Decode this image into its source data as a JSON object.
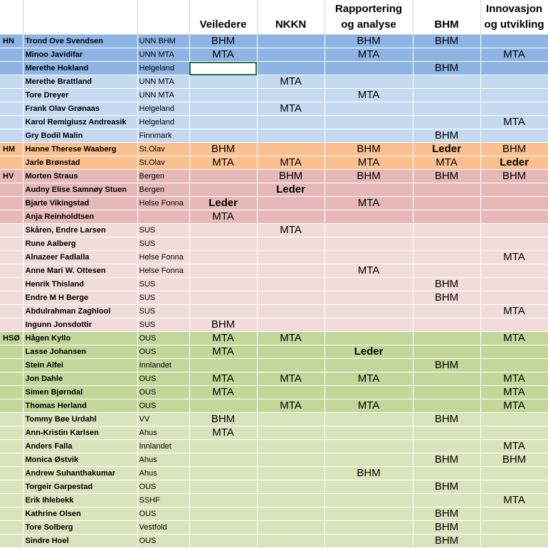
{
  "headers": [
    "",
    "",
    "",
    "Veiledere",
    "NKKN",
    "Rapportering\nog analyse",
    "BHM",
    "Innovasjon\nog utvikling"
  ],
  "colors": {
    "hn_dark": "#8eb4e3",
    "hn_light": "#c5d9f1",
    "hm": "#fac090",
    "hv_dark": "#e6b8b7",
    "hv_light": "#f2dcdb",
    "hso_dark": "#c4d79b",
    "hso_light": "#d8e4bc"
  },
  "rows": [
    {
      "region": "HN",
      "name": "Trond Ove Svendsen",
      "org": "UNN BHM",
      "veiledere": "BHM",
      "nkkn": "",
      "rapport": "BHM",
      "bhm": "BHM",
      "innovasjon": "",
      "color": "#8eb4e3",
      "bold": []
    },
    {
      "region": "",
      "name": "Minoo Javidifar",
      "org": "UNN MTA",
      "veiledere": "MTA",
      "nkkn": "",
      "rapport": "MTA",
      "bhm": "",
      "innovasjon": "MTA",
      "color": "#8eb4e3",
      "bold": []
    },
    {
      "region": "",
      "name": "Merethe Hokland",
      "org": "Helgeland",
      "veiledere": "",
      "nkkn": "",
      "rapport": "",
      "bhm": "BHM",
      "innovasjon": "",
      "color": "#8eb4e3",
      "bold": [],
      "selected": true
    },
    {
      "region": "",
      "name": "Merethe Brattland",
      "org": "UNN MTA",
      "veiledere": "",
      "nkkn": "MTA",
      "rapport": "",
      "bhm": "",
      "innovasjon": "",
      "color": "#c5d9f1",
      "bold": []
    },
    {
      "region": "",
      "name": "Tore Dreyer",
      "org": "UNN MTA",
      "veiledere": "",
      "nkkn": "",
      "rapport": "MTA",
      "bhm": "",
      "innovasjon": "",
      "color": "#c5d9f1",
      "bold": []
    },
    {
      "region": "",
      "name": "Frank Olav Grønaas",
      "org": "Helgeland",
      "veiledere": "",
      "nkkn": "MTA",
      "rapport": "",
      "bhm": "",
      "innovasjon": "",
      "color": "#c5d9f1",
      "bold": []
    },
    {
      "region": "",
      "name": "Karol Remigiusz Andreasik",
      "org": "Helgeland",
      "veiledere": "",
      "nkkn": "",
      "rapport": "",
      "bhm": "",
      "innovasjon": "MTA",
      "color": "#c5d9f1",
      "bold": []
    },
    {
      "region": "",
      "name": "Gry Bodil Malin",
      "org": "Finnmark",
      "veiledere": "",
      "nkkn": "",
      "rapport": "",
      "bhm": "BHM",
      "innovasjon": "",
      "color": "#c5d9f1",
      "bold": []
    },
    {
      "region": "HM",
      "name": "Hanne Therese Waaberg",
      "org": "St.Olav",
      "veiledere": "BHM",
      "nkkn": "",
      "rapport": "BHM",
      "bhm": "Leder",
      "innovasjon": "BHM",
      "color": "#fac090",
      "bold": [
        "bhm"
      ]
    },
    {
      "region": "",
      "name": "Jarle Brønstad",
      "org": "St.Olav",
      "veiledere": "MTA",
      "nkkn": "MTA",
      "rapport": "MTA",
      "bhm": "MTA",
      "innovasjon": "Leder",
      "color": "#fac090",
      "bold": [
        "innovasjon"
      ]
    },
    {
      "region": "HV",
      "name": "Morten Straus",
      "org": "Bergen",
      "veiledere": "",
      "nkkn": "BHM",
      "rapport": "BHM",
      "bhm": "BHM",
      "innovasjon": "BHM",
      "color": "#e6b8b7",
      "bold": []
    },
    {
      "region": "",
      "name": "Audny Elise Samnøy Stuen",
      "org": "Bergen",
      "veiledere": "",
      "nkkn": "Leder",
      "rapport": "",
      "bhm": "",
      "innovasjon": "",
      "color": "#e6b8b7",
      "bold": [
        "nkkn"
      ]
    },
    {
      "region": "",
      "name": "Bjarte Vikingstad",
      "org": "Helse Fonna",
      "veiledere": "Leder",
      "nkkn": "",
      "rapport": "MTA",
      "bhm": "",
      "innovasjon": "",
      "color": "#e6b8b7",
      "bold": [
        "veiledere"
      ]
    },
    {
      "region": "",
      "name": "Anja Reinholdtsen",
      "org": "",
      "veiledere": "MTA",
      "nkkn": "",
      "rapport": "",
      "bhm": "",
      "innovasjon": "",
      "color": "#e6b8b7",
      "bold": []
    },
    {
      "region": "",
      "name": "Skåren, Endre Larsen",
      "org": "SUS",
      "veiledere": "",
      "nkkn": "MTA",
      "rapport": "",
      "bhm": "",
      "innovasjon": "",
      "color": "#f2dcdb",
      "bold": []
    },
    {
      "region": "",
      "name": "Rune Aalberg",
      "org": "SUS",
      "veiledere": "",
      "nkkn": "",
      "rapport": "",
      "bhm": "",
      "innovasjon": "",
      "color": "#f2dcdb",
      "bold": []
    },
    {
      "region": "",
      "name": "Alnazeer Fadlalla",
      "org": "Helse Fonna",
      "veiledere": "",
      "nkkn": "",
      "rapport": "",
      "bhm": "",
      "innovasjon": "MTA",
      "color": "#f2dcdb",
      "bold": []
    },
    {
      "region": "",
      "name": "Anne Mari W. Ottesen",
      "org": "Helse Fonna",
      "veiledere": "",
      "nkkn": "",
      "rapport": "MTA",
      "bhm": "",
      "innovasjon": "",
      "color": "#f2dcdb",
      "bold": []
    },
    {
      "region": "",
      "name": "Henrik Thisland",
      "org": "SUS",
      "veiledere": "",
      "nkkn": "",
      "rapport": "",
      "bhm": "BHM",
      "innovasjon": "",
      "color": "#f2dcdb",
      "bold": []
    },
    {
      "region": "",
      "name": "Endre M H Berge",
      "org": "SUS",
      "veiledere": "",
      "nkkn": "",
      "rapport": "",
      "bhm": "BHM",
      "innovasjon": "",
      "color": "#f2dcdb",
      "bold": []
    },
    {
      "region": "",
      "name": "Abdulrahman Zaghlool",
      "org": "SUS",
      "veiledere": "",
      "nkkn": "",
      "rapport": "",
      "bhm": "",
      "innovasjon": "MTA",
      "color": "#f2dcdb",
      "bold": []
    },
    {
      "region": "",
      "name": "Ingunn Jonsdottir",
      "org": "SUS",
      "veiledere": "BHM",
      "nkkn": "",
      "rapport": "",
      "bhm": "",
      "innovasjon": "",
      "color": "#f2dcdb",
      "bold": []
    },
    {
      "region": "HSØ",
      "name": "Hågen Kyllo",
      "org": "OUS",
      "veiledere": "MTA",
      "nkkn": "MTA",
      "rapport": "",
      "bhm": "",
      "innovasjon": "MTA",
      "color": "#c4d79b",
      "bold": []
    },
    {
      "region": "",
      "name": "Lasse Johansen",
      "org": "OUS",
      "veiledere": "MTA",
      "nkkn": "",
      "rapport": "Leder",
      "bhm": "",
      "innovasjon": "",
      "color": "#c4d79b",
      "bold": [
        "rapport"
      ]
    },
    {
      "region": "",
      "name": "Stein Alfei",
      "org": "Innlandet",
      "veiledere": "",
      "nkkn": "",
      "rapport": "",
      "bhm": "BHM",
      "innovasjon": "",
      "color": "#c4d79b",
      "bold": []
    },
    {
      "region": "",
      "name": "Jon Dahle",
      "org": "OUS",
      "veiledere": "MTA",
      "nkkn": "MTA",
      "rapport": "MTA",
      "bhm": "",
      "innovasjon": "MTA",
      "color": "#c4d79b",
      "bold": []
    },
    {
      "region": "",
      "name": "Simen Bjørndal",
      "org": "OUS",
      "veiledere": "MTA",
      "nkkn": "",
      "rapport": "",
      "bhm": "",
      "innovasjon": "MTA",
      "color": "#c4d79b",
      "bold": []
    },
    {
      "region": "",
      "name": "Thomas Herland",
      "org": "OUS",
      "veiledere": "",
      "nkkn": "MTA",
      "rapport": "MTA",
      "bhm": "",
      "innovasjon": "MTA",
      "color": "#c4d79b",
      "bold": []
    },
    {
      "region": "",
      "name": "Tommy Bøe Urdahl",
      "org": "VV",
      "veiledere": "BHM",
      "nkkn": "",
      "rapport": "",
      "bhm": "BHM",
      "innovasjon": "",
      "color": "#d8e4bc",
      "bold": []
    },
    {
      "region": "",
      "name": "Ann-Kristin Karlsen",
      "org": "Ahus",
      "veiledere": "MTA",
      "nkkn": "",
      "rapport": "",
      "bhm": "",
      "innovasjon": "",
      "color": "#d8e4bc",
      "bold": []
    },
    {
      "region": "",
      "name": "Anders Falla",
      "org": "Innlandet",
      "veiledere": "",
      "nkkn": "",
      "rapport": "",
      "bhm": "",
      "innovasjon": "MTA",
      "color": "#d8e4bc",
      "bold": []
    },
    {
      "region": "",
      "name": "Monica Østvik",
      "org": "Ahus",
      "veiledere": "",
      "nkkn": "",
      "rapport": "",
      "bhm": "BHM",
      "innovasjon": "BHM",
      "color": "#d8e4bc",
      "bold": []
    },
    {
      "region": "",
      "name": "Andrew Suhanthakumar",
      "org": "Ahus",
      "veiledere": "",
      "nkkn": "",
      "rapport": "BHM",
      "bhm": "",
      "innovasjon": "",
      "color": "#d8e4bc",
      "bold": []
    },
    {
      "region": "",
      "name": "Torgeir Garpestad",
      "org": "OUS",
      "veiledere": "",
      "nkkn": "",
      "rapport": "",
      "bhm": "BHM",
      "innovasjon": "",
      "color": "#d8e4bc",
      "bold": []
    },
    {
      "region": "",
      "name": "Erik Ihlebekk",
      "org": "SSHF",
      "veiledere": "",
      "nkkn": "",
      "rapport": "",
      "bhm": "",
      "innovasjon": "MTA",
      "color": "#d8e4bc",
      "bold": []
    },
    {
      "region": "",
      "name": "Kathrine Olsen",
      "org": "OUS",
      "veiledere": "",
      "nkkn": "",
      "rapport": "",
      "bhm": "BHM",
      "innovasjon": "",
      "color": "#d8e4bc",
      "bold": []
    },
    {
      "region": "",
      "name": "Tore Solberg",
      "org": "Vestfold",
      "veiledere": "",
      "nkkn": "",
      "rapport": "",
      "bhm": "BHM",
      "innovasjon": "",
      "color": "#d8e4bc",
      "bold": []
    },
    {
      "region": "",
      "name": "Sindre Hoel",
      "org": "OUS",
      "veiledere": "",
      "nkkn": "",
      "rapport": "",
      "bhm": "BHM",
      "innovasjon": "",
      "color": "#d8e4bc",
      "bold": []
    }
  ]
}
